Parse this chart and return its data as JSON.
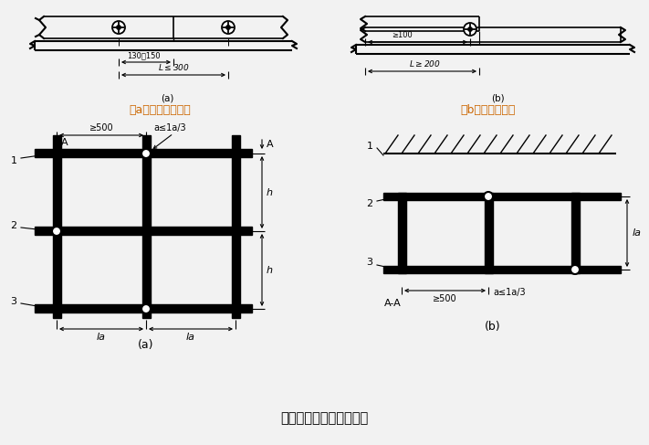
{
  "bg_color": "#f2f2f2",
  "title": "纵向水平杆对接接头布置",
  "label_a_text": "（a）脚手板对接；",
  "label_b_text": "（b）脚手板搭接",
  "label_color": "#cc6600",
  "black": "#000000",
  "white": "#ffffff"
}
